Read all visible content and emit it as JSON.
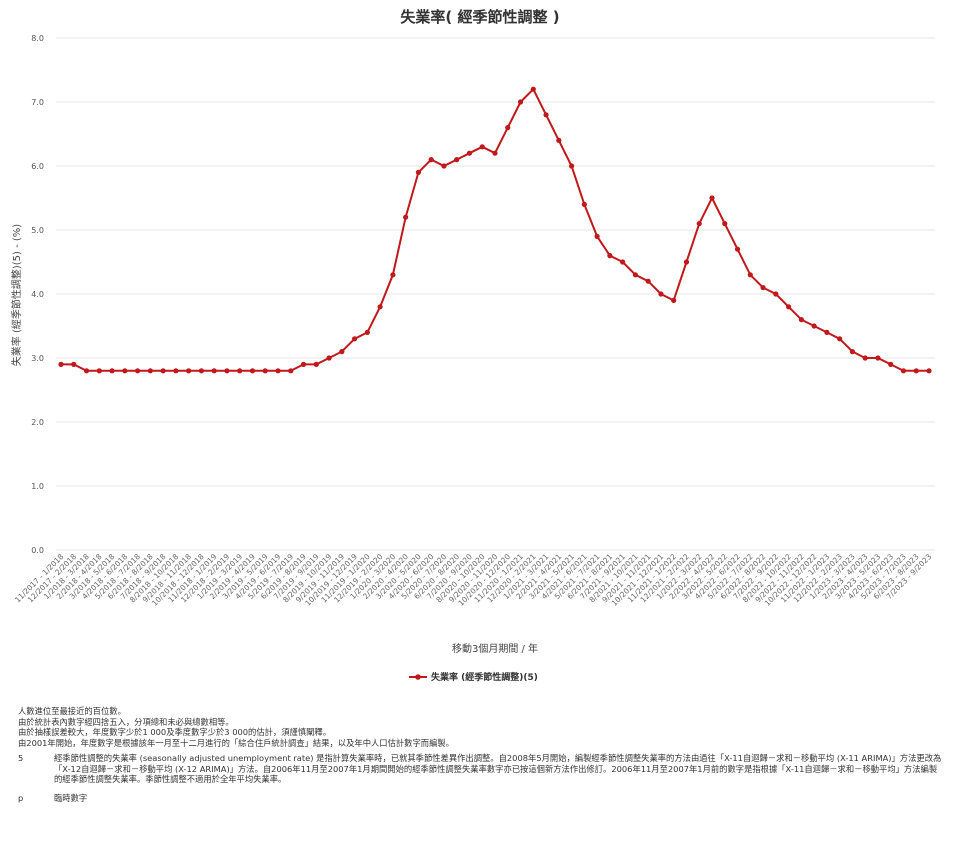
{
  "chart_data": {
    "type": "line",
    "title": "失業率( 經季節性調整 )",
    "xlabel": "移動3個月期間 / 年",
    "ylabel": "失業率 (經季節性調整)(5) - (%)",
    "ylim": [
      0,
      8
    ],
    "yticks": [
      "0.0",
      "1.0",
      "2.0",
      "3.0",
      "4.0",
      "5.0",
      "6.0",
      "7.0",
      "8.0"
    ],
    "grid": "horizontal",
    "legend": "bottom-center",
    "color": "#c0181b",
    "categories": [
      "11/2017 - 1/2018",
      "12/2017 - 2/2018",
      "1/2018 - 3/2018",
      "2/2018 - 4/2018",
      "3/2018 - 5/2018",
      "4/2018 - 6/2018",
      "5/2018 - 7/2018",
      "6/2018 - 8/2018",
      "7/2018 - 9/2018",
      "8/2018 - 10/2018",
      "9/2018 - 11/2018",
      "10/2018 - 12/2018",
      "11/2018 - 1/2019",
      "12/2018 - 2/2019",
      "1/2019 - 3/2019",
      "2/2019 - 4/2019",
      "3/2019 - 5/2019",
      "4/2019 - 6/2019",
      "5/2019 - 7/2019",
      "6/2019 - 8/2019",
      "7/2019 - 9/2019",
      "8/2019 - 10/2019",
      "9/2019 - 11/2019",
      "10/2019 - 12/2019",
      "11/2019 - 1/2020",
      "12/2019 - 2/2020",
      "1/2020 - 3/2020",
      "2/2020 - 4/2020",
      "3/2020 - 5/2020",
      "4/2020 - 6/2020",
      "5/2020 - 7/2020",
      "6/2020 - 8/2020",
      "7/2020 - 9/2020",
      "8/2020 - 10/2020",
      "9/2020 - 11/2020",
      "10/2020 - 12/2020",
      "11/2020 - 1/2021",
      "12/2020 - 2/2021",
      "1/2021 - 3/2021",
      "2/2021 - 4/2021",
      "3/2021 - 5/2021",
      "4/2021 - 6/2021",
      "5/2021 - 7/2021",
      "6/2021 - 8/2021",
      "7/2021 - 9/2021",
      "8/2021 - 10/2021",
      "9/2021 - 11/2021",
      "10/2021 - 12/2021",
      "11/2021 - 1/2022",
      "12/2021 - 2/2022",
      "1/2022 - 3/2022",
      "2/2022 - 4/2022",
      "3/2022 - 5/2022",
      "4/2022 - 6/2022",
      "5/2022 - 7/2022",
      "6/2022 - 8/2022",
      "7/2022 - 9/2022",
      "8/2022 - 10/2022",
      "9/2022 - 11/2022",
      "10/2022 - 12/2022",
      "11/2022 - 1/2023",
      "12/2022 - 2/2023",
      "1/2023 - 3/2023",
      "2/2023 - 4/2023",
      "3/2023 - 5/2023",
      "4/2023 - 6/2023",
      "5/2023 - 7/2023",
      "6/2023 - 8/2023",
      "7/2023 - 9/2023"
    ],
    "series": [
      {
        "name": "失業率 (經季節性調整)(5)",
        "values": [
          2.9,
          2.9,
          2.8,
          2.8,
          2.8,
          2.8,
          2.8,
          2.8,
          2.8,
          2.8,
          2.8,
          2.8,
          2.8,
          2.8,
          2.8,
          2.8,
          2.8,
          2.8,
          2.8,
          2.9,
          2.9,
          3.0,
          3.1,
          3.3,
          3.4,
          3.8,
          4.3,
          5.2,
          5.9,
          6.1,
          6.0,
          6.1,
          6.2,
          6.3,
          6.2,
          6.6,
          7.0,
          7.2,
          6.8,
          6.4,
          6.0,
          5.4,
          4.9,
          4.6,
          4.5,
          4.3,
          4.2,
          4.0,
          3.9,
          4.5,
          5.1,
          5.5,
          5.1,
          4.7,
          4.3,
          4.1,
          4.0,
          3.8,
          3.6,
          3.5,
          3.4,
          3.3,
          3.1,
          3.0,
          3.0,
          2.9,
          2.8,
          2.8,
          2.8
        ]
      }
    ]
  },
  "notes": {
    "lines": [
      "人數進位至最接近的百位數。",
      "由於統計表內數字經四捨五入，分項總和未必與總數相等。",
      "由於抽樣誤差較大，年度數字少於1 000及季度數字少於3 000的估計，須謹慎闡釋。",
      "由2001年開始，年度數字是根據該年一月至十二月進行的「綜合住戶統計調查」結果，以及年中人口估計數字而編製。"
    ],
    "footnotes": [
      {
        "key": "5",
        "text": "經季節性調整的失業率 (seasonally adjusted unemployment rate) 是指計算失業率時，已就其季節性差異作出調整。自2008年5月開始，編製經季節性調整失業率的方法由過往「X-11自迴歸－求和－移動平均 (X-11 ARIMA)」方法更改為「X-12自迴歸－求和－移動平均 (X-12 ARIMA)」方法。自2006年11月至2007年1月期間開始的經季節性調整失業率數字亦已按這個新方法作出修訂。2006年11月至2007年1月前的數字是指根據「X-11自迴歸－求和－移動平均」方法編製的經季節性調整失業率。季節性調整不適用於全年平均失業率。"
      },
      {
        "key": "p",
        "text": "臨時數字"
      }
    ]
  }
}
